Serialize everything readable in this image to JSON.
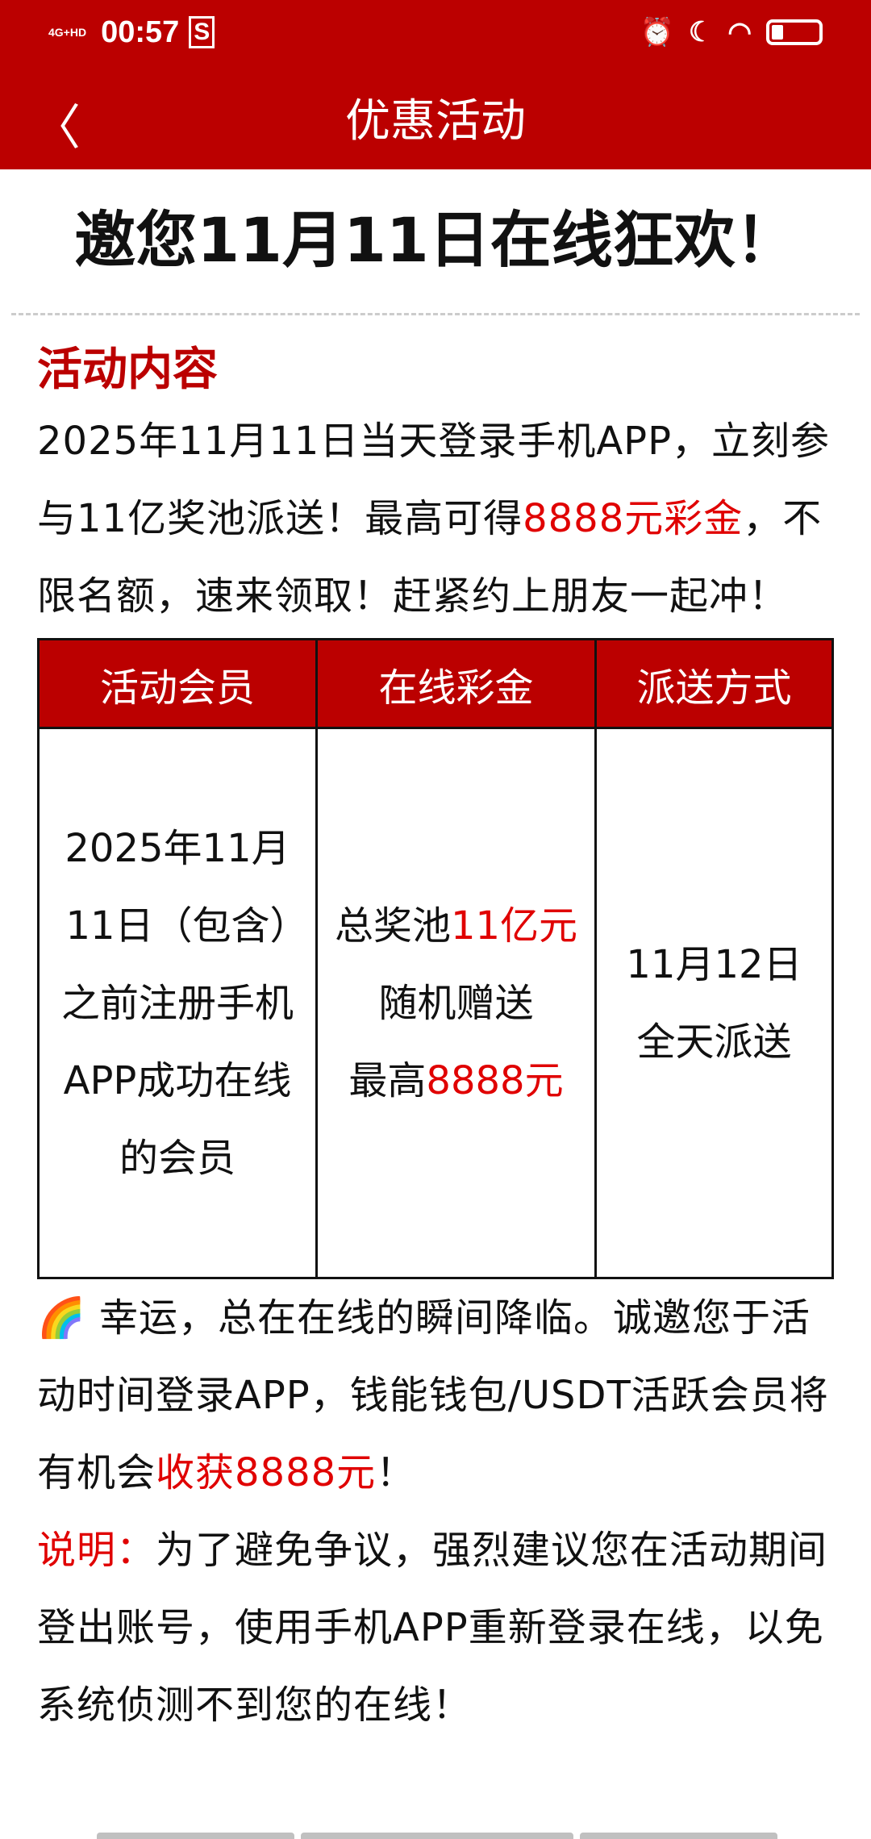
{
  "status_bar": {
    "network": "4G+HD",
    "time": "00:57",
    "notification": "S"
  },
  "nav": {
    "title": "优惠活动"
  },
  "headline": "邀您11月11日在线狂欢！",
  "section_title": "活动内容",
  "intro": {
    "part1": "2025年11月11日当天登录手机APP，立刻参与11亿奖池派送！最高可得",
    "highlight": "8888元彩金",
    "part2": "，不限名额，速来领取！赶紧约上朋友一起冲！"
  },
  "table": {
    "headers": [
      "活动会员",
      "在线彩金",
      "派送方式"
    ],
    "member": "2025年11月11日（包含）之前注册手机APP成功在线的会员",
    "bonus": {
      "p1": "总奖池",
      "r1": "11亿元",
      "p2": "随机赠送",
      "p3": "最高",
      "r2": "8888元"
    },
    "delivery": {
      "line1": "11月12日",
      "line2": "全天派送"
    }
  },
  "lucky": {
    "icon": "rainbow-icon",
    "part1": "幸运，总在在线的瞬间降临。诚邀您于活动时间登录APP，钱能钱包/USDT活跃会员将有机会",
    "highlight": "收获8888元",
    "part2": "！"
  },
  "note": {
    "label": "说明：",
    "text": "为了避免争议，强烈建议您在活动期间登出账号，使用手机APP重新登录在线，以免系统侦测不到您的在线！"
  },
  "colors": {
    "brand": "#bb0000",
    "highlight": "#e00000"
  }
}
